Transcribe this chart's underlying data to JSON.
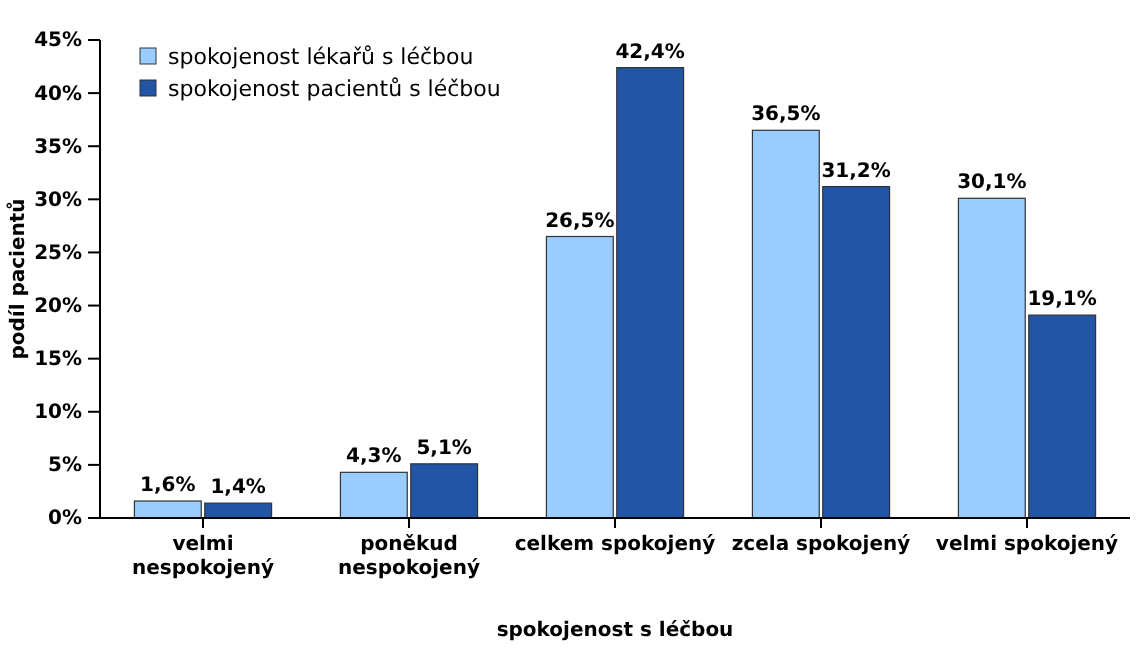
{
  "chart_data": {
    "type": "bar",
    "xlabel": "spokojenost s léčbou",
    "ylabel": "podíl pacientů",
    "categories": [
      "velmi nespokojený",
      "poněkud nespokojený",
      "celkem spokojený",
      "zcela spokojený",
      "velmi spokojený"
    ],
    "series": [
      {
        "name": "spokojenost lékařů s léčbou",
        "color": "#99ccff",
        "values": [
          1.6,
          4.3,
          26.5,
          36.5,
          30.1
        ],
        "value_labels": [
          "1,6%",
          "4,3%",
          "26,5%",
          "36,5%",
          "30,1%"
        ]
      },
      {
        "name": "spokojenost pacientů s léčbou",
        "color": "#2255a5",
        "values": [
          1.4,
          5.1,
          42.4,
          31.2,
          19.1
        ],
        "value_labels": [
          "1,4%",
          "5,1%",
          "42,4%",
          "31,2%",
          "19,1%"
        ]
      }
    ],
    "ylim": [
      0,
      45
    ],
    "yticks": [
      {
        "value": 0,
        "label": "0%"
      },
      {
        "value": 5,
        "label": "5%"
      },
      {
        "value": 10,
        "label": "10%"
      },
      {
        "value": 15,
        "label": "15%"
      },
      {
        "value": 20,
        "label": "20%"
      },
      {
        "value": 25,
        "label": "25%"
      },
      {
        "value": 30,
        "label": "30%"
      },
      {
        "value": 35,
        "label": "35%"
      },
      {
        "value": 40,
        "label": "40%"
      },
      {
        "value": 45,
        "label": "45%"
      }
    ],
    "legend": "top left",
    "grid": false
  }
}
